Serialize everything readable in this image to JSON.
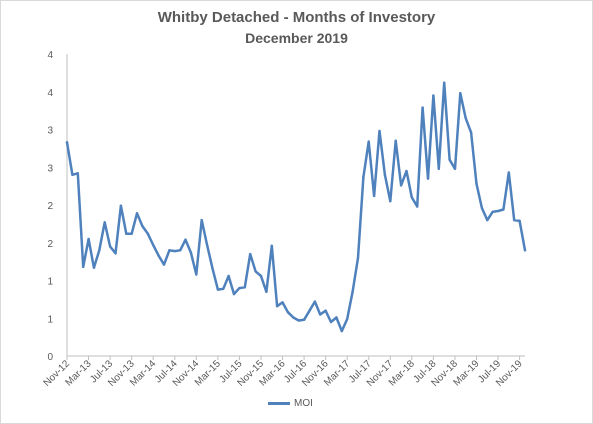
{
  "chart_data": {
    "type": "line",
    "title": "Whitby Detached - Months of Investory",
    "subtitle": "December 2019",
    "xlabel": "",
    "ylabel": "",
    "y_tick_labels": [
      "0",
      "1",
      "1",
      "2",
      "2",
      "3",
      "3",
      "4",
      "4"
    ],
    "ylim": [
      0,
      4
    ],
    "grid": false,
    "legend_position": "bottom",
    "series_color": "#4f81bd",
    "x_tick_labels": [
      "Nov-12",
      "Mar-13",
      "Jul-13",
      "Nov-13",
      "Mar-14",
      "Jul-14",
      "Nov-14",
      "Mar-15",
      "Jul-15",
      "Nov-15",
      "Mar-16",
      "Jul-16",
      "Nov-16",
      "Mar-17",
      "Jul-17",
      "Nov-17",
      "Mar-18",
      "Jul-18",
      "Nov-18",
      "Mar-19",
      "Jul-19",
      "Nov-19"
    ],
    "x": [
      "Nov-12",
      "Dec-12",
      "Jan-13",
      "Feb-13",
      "Mar-13",
      "Apr-13",
      "May-13",
      "Jun-13",
      "Jul-13",
      "Aug-13",
      "Sep-13",
      "Oct-13",
      "Nov-13",
      "Dec-13",
      "Jan-14",
      "Feb-14",
      "Mar-14",
      "Apr-14",
      "May-14",
      "Jun-14",
      "Jul-14",
      "Aug-14",
      "Sep-14",
      "Oct-14",
      "Nov-14",
      "Dec-14",
      "Jan-15",
      "Feb-15",
      "Mar-15",
      "Apr-15",
      "May-15",
      "Jun-15",
      "Jul-15",
      "Aug-15",
      "Sep-15",
      "Oct-15",
      "Nov-15",
      "Dec-15",
      "Jan-16",
      "Feb-16",
      "Mar-16",
      "Apr-16",
      "May-16",
      "Jun-16",
      "Jul-16",
      "Aug-16",
      "Sep-16",
      "Oct-16",
      "Nov-16",
      "Dec-16",
      "Jan-17",
      "Feb-17",
      "Mar-17",
      "Apr-17",
      "May-17",
      "Jun-17",
      "Jul-17",
      "Aug-17",
      "Sep-17",
      "Oct-17",
      "Nov-17",
      "Dec-17",
      "Jan-18",
      "Feb-18",
      "Mar-18",
      "Apr-18",
      "May-18",
      "Jun-18",
      "Jul-18",
      "Aug-18",
      "Sep-18",
      "Oct-18",
      "Nov-18",
      "Dec-18",
      "Jan-19",
      "Feb-19",
      "Mar-19",
      "Apr-19",
      "May-19",
      "Jun-19",
      "Jul-19",
      "Aug-19",
      "Sep-19",
      "Oct-19",
      "Nov-19",
      "Dec-19"
    ],
    "series": [
      {
        "name": "MOI",
        "values": [
          2.83,
          2.4,
          2.42,
          1.18,
          1.55,
          1.17,
          1.4,
          1.77,
          1.45,
          1.36,
          1.99,
          1.62,
          1.62,
          1.89,
          1.72,
          1.62,
          1.47,
          1.33,
          1.21,
          1.4,
          1.39,
          1.4,
          1.54,
          1.37,
          1.08,
          1.8,
          1.47,
          1.16,
          0.88,
          0.89,
          1.06,
          0.82,
          0.9,
          0.91,
          1.35,
          1.12,
          1.06,
          0.85,
          1.46,
          0.66,
          0.71,
          0.58,
          0.51,
          0.47,
          0.48,
          0.6,
          0.72,
          0.55,
          0.6,
          0.45,
          0.51,
          0.33,
          0.49,
          0.85,
          1.3,
          2.37,
          2.84,
          2.12,
          2.98,
          2.4,
          2.05,
          2.85,
          2.26,
          2.45,
          2.1,
          1.98,
          3.29,
          2.35,
          3.45,
          2.48,
          3.62,
          2.6,
          2.48,
          3.48,
          3.15,
          2.96,
          2.28,
          1.96,
          1.8,
          1.91,
          1.92,
          1.94,
          2.43,
          1.8,
          1.79,
          1.4
        ]
      }
    ]
  }
}
